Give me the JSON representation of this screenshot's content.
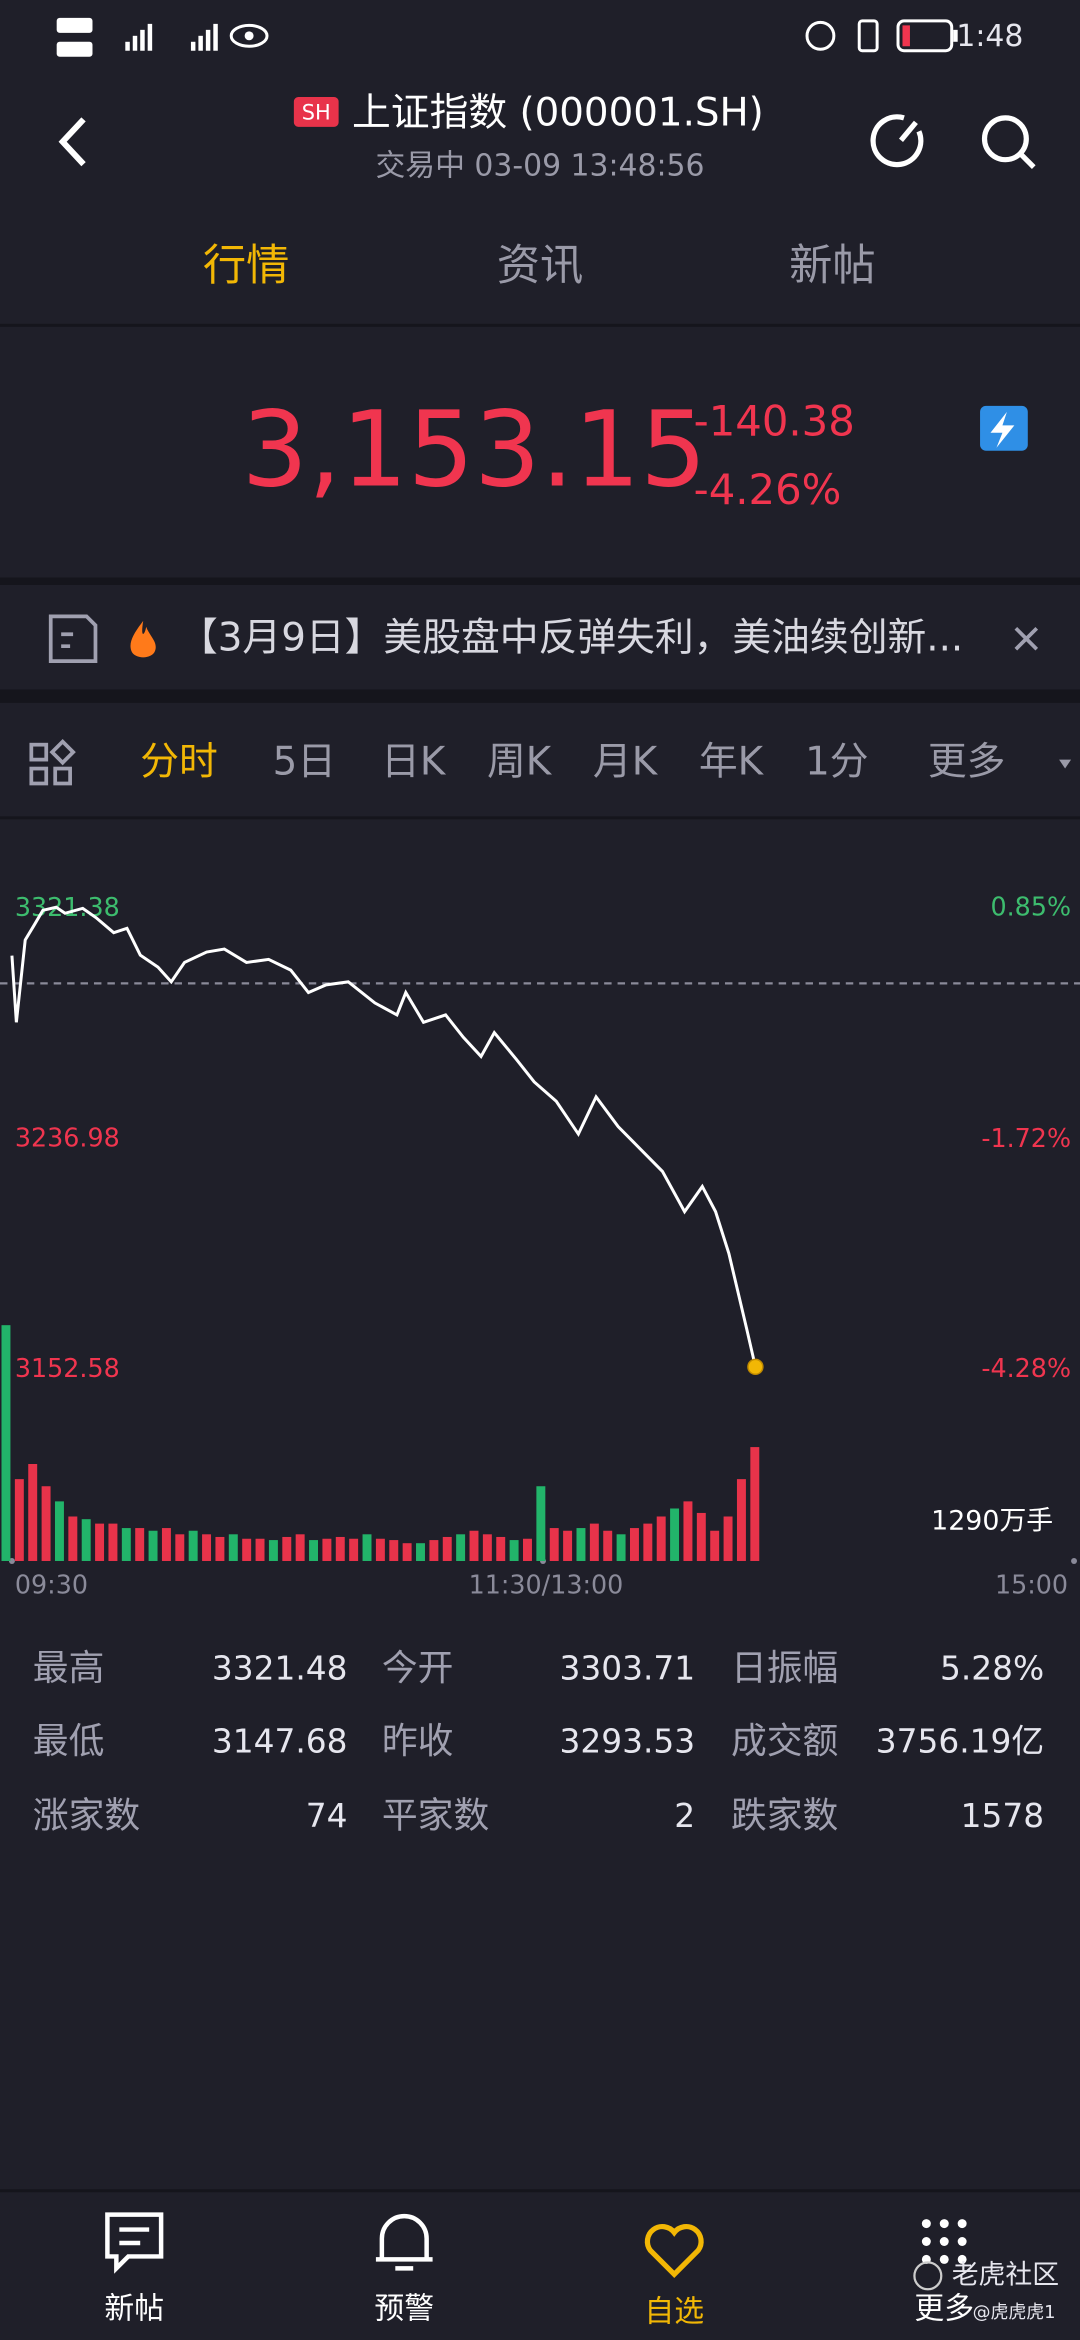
{
  "status_bar": {
    "time": "1:48"
  },
  "header": {
    "badge": "SH",
    "title": "上证指数 (000001.SH)",
    "subtitle": "交易中 03-09 13:48:56"
  },
  "tabs": [
    "行情",
    "资讯",
    "新帖"
  ],
  "quote": {
    "price": "3,153.15",
    "change": "-140.38",
    "change_pct": "-4.26%"
  },
  "news": {
    "text": "【3月9日】美股盘中反弹失利，美油续创新..."
  },
  "chart_tabs": [
    "分时",
    "5日",
    "日K",
    "周K",
    "月K",
    "年K",
    "1分",
    "更多"
  ],
  "chart_data": {
    "type": "line",
    "xlim": [
      0,
      240
    ],
    "xticks": [
      {
        "value": 0,
        "label": "09:30"
      },
      {
        "value": 120,
        "label": "11:30/13:00"
      },
      {
        "value": 240,
        "label": "15:00"
      }
    ],
    "ylim": [
      3145,
      3330
    ],
    "yticks": [
      3321.38,
      3236.98,
      3152.58
    ],
    "y2lim": [
      -4.51,
      1.11
    ],
    "y2ticks": [
      {
        "value": 0.85,
        "label": "0.85%"
      },
      {
        "value": -1.72,
        "label": "-1.72%"
      },
      {
        "value": -4.28,
        "label": "-4.28%"
      }
    ],
    "x": [
      0,
      1,
      3,
      5,
      7,
      10,
      12,
      16,
      19,
      23,
      26,
      29,
      33,
      36,
      39,
      44,
      48,
      53,
      58,
      63,
      67,
      71,
      76,
      82,
      87,
      89,
      93,
      98,
      102,
      106,
      109,
      114,
      118,
      123,
      128,
      132,
      137,
      142,
      147,
      152,
      156,
      159,
      162,
      166,
      168
    ],
    "series": [
      {
        "color": "#ffffff",
        "values": [
          3303.7,
          3279.3,
          3309.4,
          3314.8,
          3320.3,
          3321.4,
          3319.2,
          3321.0,
          3317.6,
          3312.1,
          3313.7,
          3303.9,
          3299.5,
          3294.1,
          3301.2,
          3305.0,
          3306.1,
          3301.2,
          3302.3,
          3298.4,
          3290.2,
          3293.0,
          3294.1,
          3286.4,
          3282.0,
          3290.2,
          3279.3,
          3282.0,
          3273.8,
          3266.8,
          3275.5,
          3265.7,
          3257.5,
          3250.4,
          3238.4,
          3252.0,
          3241.1,
          3232.9,
          3224.7,
          3210.0,
          3219.2,
          3210.0,
          3194.7,
          3167.3,
          3153.2
        ]
      }
    ],
    "volume": {
      "type": "bar",
      "label": "1290万手",
      "ylim": [
        0,
        2700
      ],
      "values": [
        2650,
        920,
        1090,
        840,
        670,
        500,
        470,
        420,
        420,
        370,
        370,
        340,
        370,
        300,
        340,
        300,
        270,
        300,
        250,
        250,
        235,
        270,
        300,
        235,
        250,
        270,
        250,
        300,
        250,
        235,
        200,
        200,
        235,
        270,
        300,
        340,
        300,
        270,
        235,
        250,
        840,
        370,
        340,
        370,
        420,
        340,
        300,
        370,
        420,
        500,
        590,
        670,
        540,
        340,
        500,
        920,
        1280
      ],
      "colors": [
        "#22b46a",
        "#e8334a",
        "#e8334a",
        "#e8334a",
        "#22b46a",
        "#e8334a",
        "#22b46a",
        "#e8334a",
        "#e8334a",
        "#22b46a",
        "#e8334a",
        "#22b46a",
        "#e8334a",
        "#e8334a",
        "#22b46a",
        "#e8334a",
        "#e8334a",
        "#22b46a",
        "#e8334a",
        "#e8334a",
        "#22b46a",
        "#e8334a",
        "#e8334a",
        "#22b46a",
        "#e8334a",
        "#e8334a",
        "#e8334a",
        "#22b46a",
        "#e8334a",
        "#e8334a",
        "#e8334a",
        "#22b46a",
        "#e8334a",
        "#e8334a",
        "#22b46a",
        "#e8334a",
        "#e8334a",
        "#e8334a",
        "#22b46a",
        "#e8334a",
        "#22b46a",
        "#e8334a",
        "#e8334a",
        "#22b46a",
        "#e8334a",
        "#e8334a",
        "#22b46a",
        "#e8334a",
        "#e8334a",
        "#e8334a",
        "#22b46a",
        "#e8334a",
        "#e8334a",
        "#e8334a",
        "#e8334a",
        "#e8334a",
        "#e8334a"
      ]
    }
  },
  "stats": {
    "rows": [
      [
        "最高",
        "3321.48",
        "今开",
        "3303.71",
        "日振幅",
        "5.28%"
      ],
      [
        "最低",
        "3147.68",
        "昨收",
        "3293.53",
        "成交额",
        "3756.19亿"
      ],
      [
        "涨家数",
        "74",
        "平家数",
        "2",
        "跌家数",
        "1578"
      ]
    ]
  },
  "nav": [
    "新帖",
    "预警",
    "自选",
    "更多"
  ],
  "watermark": {
    "brand": "老虎社区",
    "user": "@虎虎虎1"
  }
}
